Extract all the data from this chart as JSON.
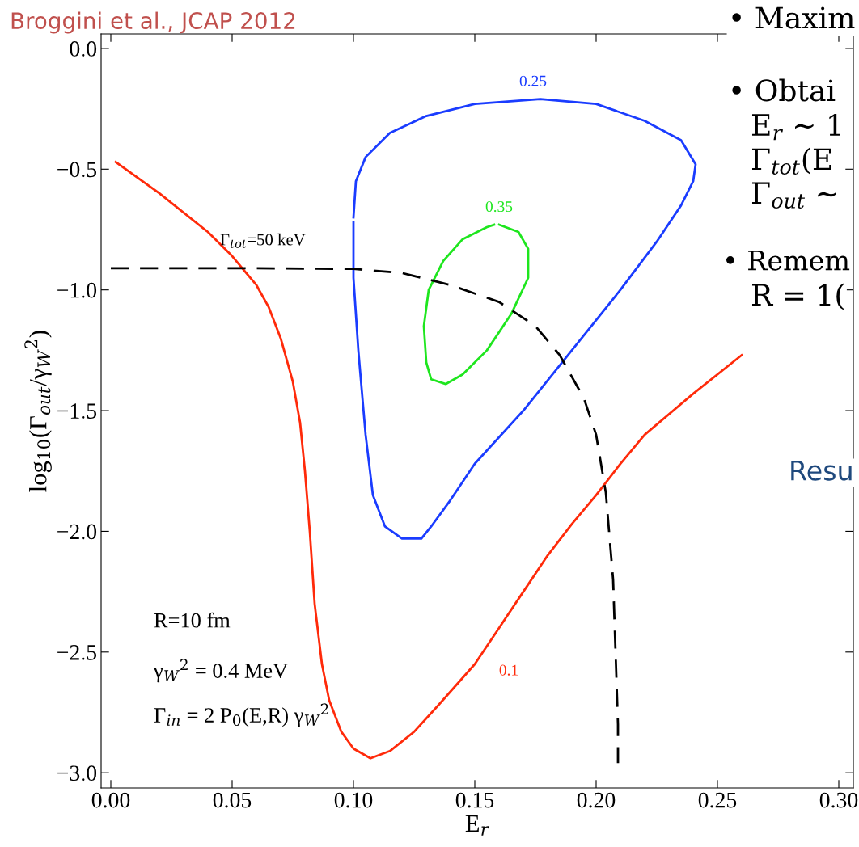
{
  "chart_data": {
    "type": "line",
    "xlabel": "E$_{r}$",
    "ylabel": "log$_{10}$(Γ$_{out}$/γ$_{W}$$^{2}$)",
    "xlim": [
      -0.004,
      0.306
    ],
    "ylim": [
      -3.063,
      0.06
    ],
    "xticks": [
      {
        "value": 0,
        "label": "0.00"
      },
      0.05,
      {
        "value": 0.1,
        "label": "0.10"
      },
      0.15,
      {
        "value": 0.2,
        "label": "0.20"
      },
      0.25,
      {
        "value": 0.3,
        "label": "0.30"
      }
    ],
    "yticks": [
      {
        "value": 0,
        "label": "0.0"
      },
      {
        "value": -0.5,
        "label": "−0.5"
      },
      {
        "value": -1,
        "label": "−1.0"
      },
      {
        "value": -1.5,
        "label": "−1.5"
      },
      {
        "value": -2,
        "label": "−2.0"
      },
      {
        "value": -2.5,
        "label": "−2.5"
      },
      {
        "value": -3,
        "label": "−3.0"
      }
    ],
    "grid": false,
    "legend": false,
    "marker": "none",
    "series": [
      {
        "name": "0.1",
        "color": "#ff2a0a",
        "line_style": "solid",
        "x": [
          0.002,
          0.02,
          0.04,
          0.05,
          0.055,
          0.06,
          0.065,
          0.07,
          0.075,
          0.078,
          0.08,
          0.082,
          0.084,
          0.087,
          0.09,
          0.095,
          0.1,
          0.107,
          0.115,
          0.125,
          0.135,
          0.15,
          0.16,
          0.17,
          0.18,
          0.19,
          0.2,
          0.21,
          0.22,
          0.24,
          0.26
        ],
        "values": [
          -0.47,
          -0.6,
          -0.76,
          -0.86,
          -0.92,
          -0.98,
          -1.07,
          -1.2,
          -1.38,
          -1.55,
          -1.75,
          -2.0,
          -2.3,
          -2.55,
          -2.7,
          -2.83,
          -2.9,
          -2.94,
          -2.91,
          -2.83,
          -2.72,
          -2.55,
          -2.4,
          -2.25,
          -2.1,
          -1.97,
          -1.85,
          -1.72,
          -1.6,
          -1.43,
          -1.27
        ]
      },
      {
        "name": "0.25",
        "color": "#1a3cff",
        "line_style": "solid",
        "x": [
          0.1,
          0.101,
          0.105,
          0.115,
          0.13,
          0.15,
          0.177,
          0.2,
          0.22,
          0.235,
          0.241,
          0.24,
          0.235,
          0.225,
          0.21,
          0.19,
          0.17,
          0.15,
          0.14,
          0.132,
          0.128,
          0.12,
          0.113,
          0.108,
          0.105,
          0.102,
          0.1,
          0.1
        ],
        "values": [
          -0.7,
          -0.55,
          -0.45,
          -0.35,
          -0.28,
          -0.23,
          -0.21,
          -0.23,
          -0.3,
          -0.38,
          -0.48,
          -0.55,
          -0.65,
          -0.8,
          -1.0,
          -1.25,
          -1.5,
          -1.72,
          -1.87,
          -1.98,
          -2.03,
          -2.03,
          -1.98,
          -1.85,
          -1.6,
          -1.25,
          -0.95,
          -0.72
        ]
      },
      {
        "name": "0.35",
        "color": "#1ee61e",
        "line_style": "solid",
        "x": [
          0.16,
          0.168,
          0.172,
          0.172,
          0.165,
          0.155,
          0.145,
          0.138,
          0.132,
          0.13,
          0.129,
          0.131,
          0.137,
          0.145,
          0.155,
          0.158
        ],
        "values": [
          -0.73,
          -0.76,
          -0.83,
          -0.95,
          -1.1,
          -1.25,
          -1.35,
          -1.39,
          -1.37,
          -1.3,
          -1.15,
          -1.0,
          -0.88,
          -0.79,
          -0.74,
          -0.73
        ]
      },
      {
        "color": "#000000",
        "line_style": "dashed",
        "x": [
          0.0,
          0.05,
          0.1,
          0.12,
          0.14,
          0.16,
          0.175,
          0.185,
          0.195,
          0.2,
          0.204,
          0.207,
          0.208,
          0.209,
          0.209
        ],
        "values": [
          -0.91,
          -0.91,
          -0.913,
          -0.93,
          -0.98,
          -1.05,
          -1.15,
          -1.27,
          -1.45,
          -1.6,
          -1.84,
          -2.2,
          -2.5,
          -2.8,
          -2.96
        ]
      }
    ],
    "annotations": [
      "Broggini et al., JCAP 2012",
      {
        "text": "Γ$_{tot}$=50 keV",
        "x": 0.045,
        "y": -0.83
      },
      "R=10 fm",
      "γ$_{W}$$^{2}$ = 0.4 MeV",
      "Γ$_{in}$ = 2 P$_{0}$(E,R) γ$_{W}$$^{2}$",
      "• Maxim",
      "• Obtai",
      "E$_{r}$ ∼ 1",
      "Γ$_{tot}$(E",
      "Γ$_{out}$ ∼",
      "• Remem",
      "R = 1(",
      "Resu"
    ]
  }
}
